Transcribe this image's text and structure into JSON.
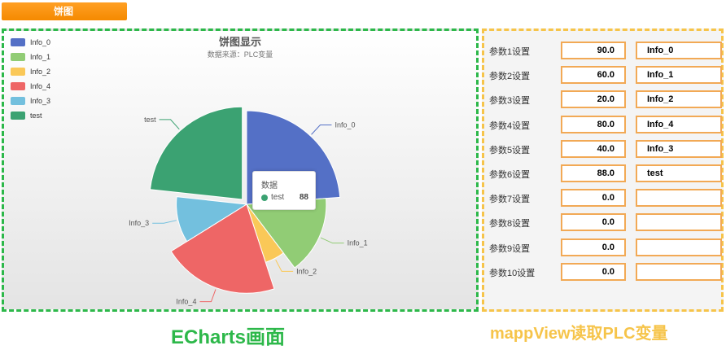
{
  "tab": {
    "label": "饼图"
  },
  "chart_data": {
    "type": "pie",
    "title": "饼图显示",
    "subtitle": "数据来源：PLC变量",
    "slices": [
      {
        "name": "Info_0",
        "value": 90,
        "color": "#5470c6"
      },
      {
        "name": "Info_1",
        "value": 60,
        "color": "#91cc75"
      },
      {
        "name": "Info_2",
        "value": 20,
        "color": "#fac858"
      },
      {
        "name": "Info_4",
        "value": 80,
        "color": "#ee6666"
      },
      {
        "name": "Info_3",
        "value": 40,
        "color": "#73c0de"
      },
      {
        "name": "test",
        "value": 88,
        "color": "#3ba272"
      }
    ],
    "legend_placement": "top-left",
    "highlighted": "test",
    "tooltip": {
      "title": "数据",
      "name": "test",
      "value": "88"
    }
  },
  "params": [
    {
      "label": "参数1设置",
      "value": "90.0",
      "name": "Info_0"
    },
    {
      "label": "参数2设置",
      "value": "60.0",
      "name": "Info_1"
    },
    {
      "label": "参数3设置",
      "value": "20.0",
      "name": "Info_2"
    },
    {
      "label": "参数4设置",
      "value": "80.0",
      "name": "Info_4"
    },
    {
      "label": "参数5设置",
      "value": "40.0",
      "name": "Info_3"
    },
    {
      "label": "参数6设置",
      "value": "88.0",
      "name": "test"
    },
    {
      "label": "参数7设置",
      "value": "0.0",
      "name": ""
    },
    {
      "label": "参数8设置",
      "value": "0.0",
      "name": ""
    },
    {
      "label": "参数9设置",
      "value": "0.0",
      "name": ""
    },
    {
      "label": "参数10设置",
      "value": "0.0",
      "name": ""
    }
  ],
  "captions": {
    "left": "ECharts画面",
    "right": "mappView读取PLC变量"
  },
  "colors": {
    "echarts_border": "#2db84a",
    "mapp_border": "#f6c44a",
    "tab": "#f58a00",
    "input_border": "#f2a955"
  }
}
